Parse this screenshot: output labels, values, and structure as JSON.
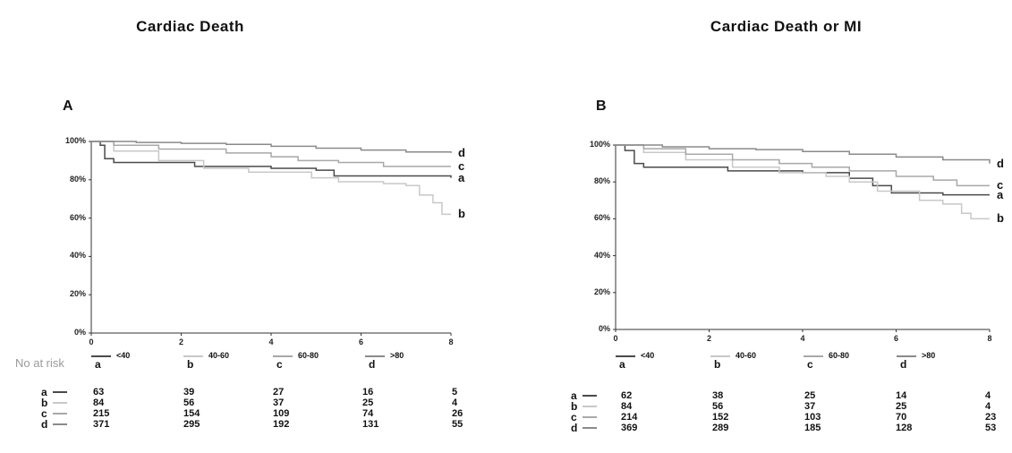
{
  "risk_header": "No at risk",
  "colors": {
    "a": "#4a4a4a",
    "b": "#c8c8c8",
    "c": "#a8a8a8",
    "d": "#8a8a8a"
  },
  "chart_data": [
    {
      "type": "line",
      "title": "Cardiac Death",
      "panel": "A",
      "x_ticks": [
        "0",
        "2",
        "4",
        "6",
        "8"
      ],
      "y_ticks": [
        "100%",
        "80%",
        "60%",
        "40%",
        "20%",
        "0%"
      ],
      "xlim": [
        0,
        8
      ],
      "ylim": [
        0,
        100
      ],
      "series": [
        {
          "name": "a",
          "legend": "<40",
          "points": [
            [
              0,
              100
            ],
            [
              0.2,
              98
            ],
            [
              0.3,
              91
            ],
            [
              0.5,
              89
            ],
            [
              2,
              89
            ],
            [
              2.3,
              87
            ],
            [
              4,
              86
            ],
            [
              5,
              85
            ],
            [
              5.4,
              82
            ],
            [
              8,
              81
            ]
          ]
        },
        {
          "name": "b",
          "legend": "40-60",
          "points": [
            [
              0,
              100
            ],
            [
              0.5,
              95
            ],
            [
              1.5,
              90
            ],
            [
              2.5,
              86
            ],
            [
              3.5,
              84
            ],
            [
              4.5,
              84
            ],
            [
              4.9,
              81
            ],
            [
              5.5,
              79
            ],
            [
              6.5,
              78
            ],
            [
              7,
              77
            ],
            [
              7.3,
              72
            ],
            [
              7.6,
              68
            ],
            [
              7.8,
              62
            ],
            [
              8,
              62
            ]
          ]
        },
        {
          "name": "c",
          "legend": "60-80",
          "points": [
            [
              0,
              100
            ],
            [
              0.5,
              98
            ],
            [
              1.5,
              96
            ],
            [
              3,
              94
            ],
            [
              4,
              92
            ],
            [
              4.6,
              90
            ],
            [
              5.5,
              89
            ],
            [
              6.5,
              87
            ],
            [
              7,
              87
            ],
            [
              8,
              87
            ]
          ]
        },
        {
          "name": "d",
          "legend": ">80",
          "points": [
            [
              0,
              100
            ],
            [
              1,
              99.5
            ],
            [
              2,
              99
            ],
            [
              3,
              98.5
            ],
            [
              4,
              97.5
            ],
            [
              5,
              96.5
            ],
            [
              6,
              95.5
            ],
            [
              7,
              94.5
            ],
            [
              8,
              94
            ]
          ]
        }
      ],
      "at_risk": {
        "a": [
          "63",
          "39",
          "27",
          "16",
          "5"
        ],
        "b": [
          "84",
          "56",
          "37",
          "25",
          "4"
        ],
        "c": [
          "215",
          "154",
          "109",
          "74",
          "26"
        ],
        "d": [
          "371",
          "295",
          "192",
          "131",
          "55"
        ]
      }
    },
    {
      "type": "line",
      "title": "Cardiac Death or MI",
      "panel": "B",
      "x_ticks": [
        "0",
        "2",
        "4",
        "6",
        "8"
      ],
      "y_ticks": [
        "100%",
        "80%",
        "60%",
        "40%",
        "20%",
        "0%"
      ],
      "xlim": [
        0,
        8
      ],
      "ylim": [
        0,
        100
      ],
      "series": [
        {
          "name": "a",
          "legend": "<40",
          "points": [
            [
              0,
              100
            ],
            [
              0.2,
              97
            ],
            [
              0.4,
              90
            ],
            [
              0.6,
              88
            ],
            [
              2,
              88
            ],
            [
              2.4,
              86
            ],
            [
              4,
              85
            ],
            [
              5,
              82
            ],
            [
              5.5,
              78
            ],
            [
              5.9,
              74
            ],
            [
              7,
              73
            ],
            [
              8,
              73
            ]
          ]
        },
        {
          "name": "b",
          "legend": "40-60",
          "points": [
            [
              0,
              100
            ],
            [
              0.6,
              96
            ],
            [
              1.5,
              92
            ],
            [
              2.5,
              88
            ],
            [
              3.5,
              85
            ],
            [
              4.5,
              83
            ],
            [
              5,
              80
            ],
            [
              5.6,
              75
            ],
            [
              6.5,
              70
            ],
            [
              7,
              68
            ],
            [
              7.4,
              63
            ],
            [
              7.6,
              60
            ],
            [
              8,
              60
            ]
          ]
        },
        {
          "name": "c",
          "legend": "60-80",
          "points": [
            [
              0,
              100
            ],
            [
              0.6,
              98
            ],
            [
              1.5,
              95
            ],
            [
              2.5,
              92
            ],
            [
              3.5,
              90
            ],
            [
              4.2,
              88
            ],
            [
              5,
              86
            ],
            [
              6,
              83
            ],
            [
              6.8,
              81
            ],
            [
              7.3,
              78
            ],
            [
              8,
              78
            ]
          ]
        },
        {
          "name": "d",
          "legend": ">80",
          "points": [
            [
              0,
              100
            ],
            [
              1,
              99
            ],
            [
              2,
              98
            ],
            [
              3,
              97.5
            ],
            [
              4,
              96.5
            ],
            [
              5,
              95
            ],
            [
              6,
              93.5
            ],
            [
              7,
              92
            ],
            [
              8,
              90
            ]
          ]
        }
      ],
      "at_risk": {
        "a": [
          "62",
          "38",
          "25",
          "14",
          "4"
        ],
        "b": [
          "84",
          "56",
          "37",
          "25",
          "4"
        ],
        "c": [
          "214",
          "152",
          "103",
          "70",
          "23"
        ],
        "d": [
          "369",
          "289",
          "185",
          "128",
          "53"
        ]
      }
    }
  ]
}
